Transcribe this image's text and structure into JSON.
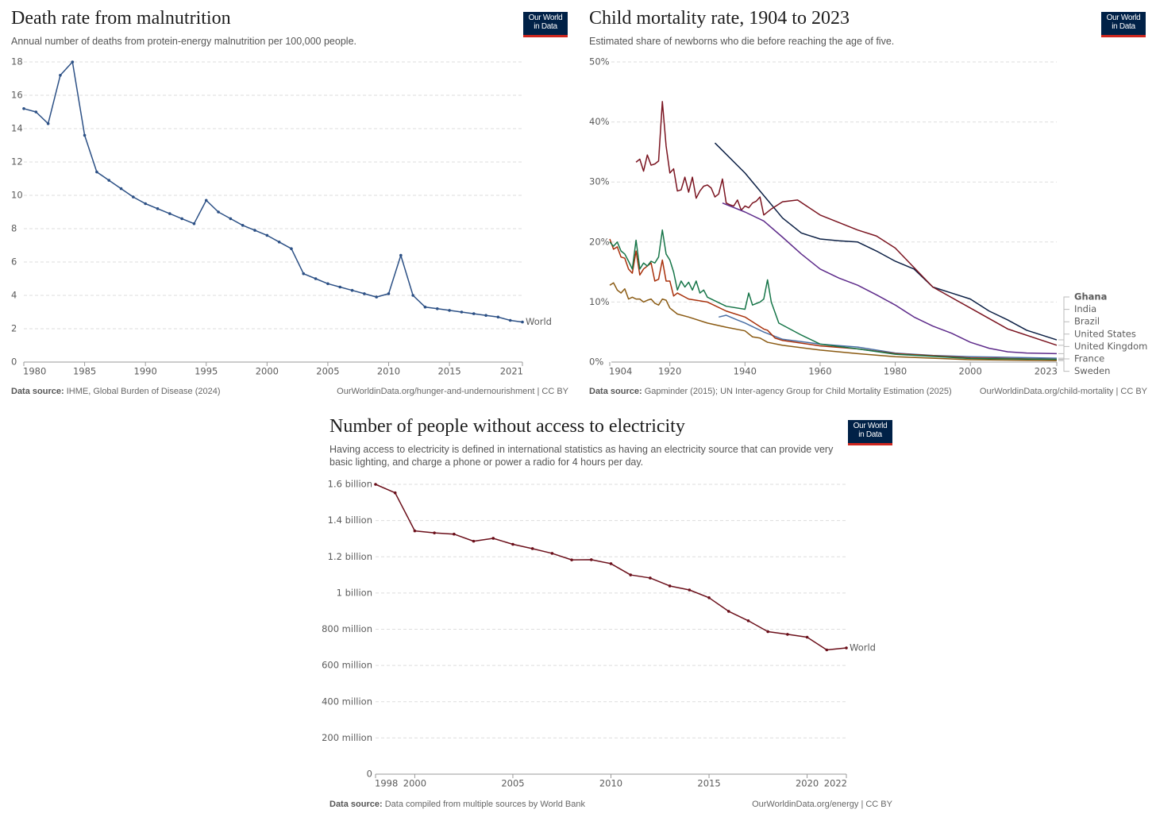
{
  "chart_data": [
    {
      "type": "line",
      "title": "Death rate from malnutrition",
      "subtitle": "Annual number of deaths from protein-energy malnutrition per 100,000 people.",
      "logo": [
        "Our World",
        "in Data"
      ],
      "source_label": "Data source:",
      "source": "IHME, Global Burden of Disease (2024)",
      "url": "OurWorldinData.org/hunger-and-undernourishment | CC BY",
      "x": [
        1980,
        1981,
        1982,
        1983,
        1984,
        1985,
        1986,
        1987,
        1988,
        1989,
        1990,
        1991,
        1992,
        1993,
        1994,
        1995,
        1996,
        1997,
        1998,
        1999,
        2000,
        2001,
        2002,
        2003,
        2004,
        2005,
        2006,
        2007,
        2008,
        2009,
        2010,
        2011,
        2012,
        2013,
        2014,
        2015,
        2016,
        2017,
        2018,
        2019,
        2020,
        2021
      ],
      "series": [
        {
          "name": "World",
          "color": "#2c5085",
          "values": [
            15.2,
            15.0,
            14.3,
            17.2,
            18.0,
            13.6,
            11.4,
            10.9,
            10.4,
            9.9,
            9.5,
            9.2,
            8.9,
            8.6,
            8.3,
            9.7,
            9.0,
            8.6,
            8.2,
            7.9,
            7.6,
            7.2,
            6.8,
            5.3,
            5.0,
            4.7,
            4.5,
            4.3,
            4.1,
            3.9,
            4.1,
            6.4,
            4.0,
            3.3,
            3.2,
            3.1,
            3.0,
            2.9,
            2.8,
            2.7,
            2.5,
            2.4
          ]
        }
      ],
      "xlim": [
        1980,
        2021
      ],
      "xticks": [
        1980,
        1985,
        1990,
        1995,
        2000,
        2005,
        2010,
        2015,
        2021
      ],
      "ylim": [
        0,
        18
      ],
      "yticks": [
        0,
        2,
        4,
        6,
        8,
        10,
        12,
        14,
        16,
        18
      ],
      "grid": true,
      "markers": true
    },
    {
      "type": "line",
      "title": "Child mortality rate, 1904 to 2023",
      "subtitle": "Estimated share of newborns who die before reaching the age of five.",
      "logo": [
        "Our World",
        "in Data"
      ],
      "source_label": "Data source:",
      "source": "Gapminder (2015); UN Inter-agency Group for Child Mortality Estimation (2025)",
      "url": "OurWorldinData.org/child-mortality | CC BY",
      "series": [
        {
          "name": "Ghana",
          "color": "#0b1f44",
          "x": [
            1932,
            1940,
            1950,
            1955,
            1960,
            1965,
            1970,
            1975,
            1980,
            1985,
            1990,
            1995,
            2000,
            2005,
            2010,
            2015,
            2023
          ],
          "values": [
            36.5,
            31.5,
            24,
            21.5,
            20.5,
            20.2,
            20,
            18.5,
            16.8,
            15.5,
            12.5,
            11.5,
            10.5,
            8.5,
            7,
            5.3,
            3.7
          ]
        },
        {
          "name": "India",
          "color": "#7a1420",
          "x": [
            1911,
            1912,
            1913,
            1914,
            1915,
            1916,
            1917,
            1918,
            1919,
            1920,
            1921,
            1922,
            1923,
            1924,
            1925,
            1926,
            1927,
            1928,
            1929,
            1930,
            1931,
            1932,
            1933,
            1934,
            1935,
            1936,
            1937,
            1938,
            1939,
            1940,
            1941,
            1942,
            1943,
            1944,
            1945,
            1947,
            1950,
            1954,
            1960,
            1970,
            1975,
            1980,
            1990,
            2000,
            2010,
            2023
          ],
          "values": [
            33.3,
            33.8,
            31.8,
            34.5,
            32.8,
            33.0,
            33.5,
            43.4,
            36,
            31.5,
            32.2,
            28.5,
            28.7,
            30.8,
            28.3,
            30.8,
            27.3,
            28.5,
            29.3,
            29.5,
            29.0,
            27.5,
            28.0,
            30.5,
            26.5,
            26.2,
            26.0,
            27.0,
            25.3,
            26.0,
            25.7,
            26.5,
            26.8,
            27.5,
            24.5,
            25.5,
            26.7,
            27.0,
            24.5,
            22,
            21,
            19,
            12.5,
            9,
            5.5,
            2.8
          ]
        },
        {
          "name": "Brazil",
          "color": "#5d2a8a",
          "x": [
            1934,
            1940,
            1945,
            1950,
            1955,
            1960,
            1965,
            1970,
            1975,
            1980,
            1985,
            1990,
            1995,
            2000,
            2005,
            2010,
            2015,
            2023
          ],
          "values": [
            26.5,
            25,
            23.5,
            20.8,
            18,
            15.5,
            14,
            12.8,
            11.2,
            9.5,
            7.5,
            6,
            4.8,
            3.3,
            2.3,
            1.7,
            1.5,
            1.4
          ]
        },
        {
          "name": "United States",
          "color": "#4a6fa5",
          "x": [
            1933,
            1935,
            1938,
            1940,
            1945,
            1950,
            1960,
            1970,
            1980,
            1990,
            2000,
            2023
          ],
          "values": [
            7.5,
            7.8,
            7,
            6.5,
            5,
            3.8,
            3,
            2.5,
            1.5,
            1.1,
            0.9,
            0.65
          ]
        },
        {
          "name": "United Kingdom",
          "color": "#a8300b",
          "x": [
            1904,
            1905,
            1906,
            1907,
            1908,
            1909,
            1910,
            1911,
            1912,
            1913,
            1914,
            1915,
            1916,
            1917,
            1918,
            1919,
            1920,
            1921,
            1922,
            1925,
            1930,
            1935,
            1940,
            1945,
            1946,
            1948,
            1950,
            1960,
            1970,
            1980,
            2000,
            2023
          ],
          "values": [
            20.5,
            18.8,
            19.2,
            17.5,
            17.3,
            15.5,
            14.8,
            18.5,
            14.5,
            15.5,
            16,
            16.5,
            13.5,
            13.8,
            17,
            13.5,
            13.5,
            11,
            11.5,
            10.5,
            10,
            8.5,
            7.5,
            5.5,
            5.3,
            4.0,
            3.6,
            2.7,
            2.2,
            1.4,
            0.7,
            0.45
          ]
        },
        {
          "name": "France",
          "color": "#167548",
          "x": [
            1904,
            1905,
            1906,
            1907,
            1908,
            1909,
            1910,
            1911,
            1912,
            1913,
            1914,
            1915,
            1916,
            1917,
            1918,
            1919,
            1920,
            1921,
            1922,
            1923,
            1924,
            1925,
            1926,
            1927,
            1928,
            1929,
            1930,
            1935,
            1940,
            1941,
            1942,
            1944,
            1945,
            1946,
            1947,
            1949,
            1955,
            1960,
            1970,
            1980,
            2000,
            2023
          ],
          "values": [
            20,
            19.3,
            20,
            18.5,
            18,
            16.8,
            15.5,
            20.3,
            15.5,
            16.5,
            16,
            16.8,
            16.5,
            17.5,
            22,
            18,
            17,
            15,
            12,
            13.5,
            12.5,
            13.3,
            12,
            13.5,
            11.5,
            12,
            10.8,
            9.3,
            8.8,
            11.5,
            9.5,
            10,
            10.5,
            13.7,
            10,
            6.5,
            4.5,
            3,
            2.2,
            1.3,
            0.6,
            0.45
          ]
        },
        {
          "name": "Sweden",
          "color": "#8a5a12",
          "x": [
            1904,
            1905,
            1906,
            1907,
            1908,
            1909,
            1910,
            1911,
            1912,
            1913,
            1914,
            1915,
            1916,
            1917,
            1918,
            1919,
            1920,
            1922,
            1925,
            1930,
            1935,
            1940,
            1942,
            1944,
            1946,
            1950,
            1960,
            1970,
            1980,
            2000,
            2023
          ],
          "values": [
            12.8,
            13.2,
            12,
            11.5,
            12.2,
            10.5,
            10.8,
            10.5,
            10.5,
            10,
            10.3,
            10.5,
            9.8,
            9.5,
            10.5,
            10.3,
            9,
            8,
            7.5,
            6.5,
            5.8,
            5.2,
            4.2,
            4,
            3.3,
            2.8,
            2,
            1.4,
            0.9,
            0.4,
            0.25
          ]
        }
      ],
      "xlim": [
        1904,
        2023
      ],
      "xticks": [
        1904,
        1920,
        1940,
        1960,
        1980,
        2000,
        2023
      ],
      "ylim": [
        0,
        50
      ],
      "yticks": [
        {
          "value": 0,
          "label": "0%"
        },
        {
          "value": 10,
          "label": "10%"
        },
        {
          "value": 20,
          "label": "20%"
        },
        {
          "value": 30,
          "label": "30%"
        },
        {
          "value": 40,
          "label": "40%"
        },
        {
          "value": 50,
          "label": "50%"
        }
      ],
      "grid": true,
      "markers": false,
      "legend": "right"
    },
    {
      "type": "line",
      "title": "Number of people without access to electricity",
      "subtitle": "Having access to electricity is defined in international statistics as having an electricity source that can provide very basic lighting, and charge a phone or power a radio for 4 hours per day.",
      "logo": [
        "Our World",
        "in Data"
      ],
      "source_label": "Data source:",
      "source": "Data compiled from multiple sources by World Bank",
      "url": "OurWorldinData.org/energy | CC BY",
      "x": [
        1998,
        1999,
        2000,
        2001,
        2002,
        2003,
        2004,
        2005,
        2006,
        2007,
        2008,
        2009,
        2010,
        2011,
        2012,
        2013,
        2014,
        2015,
        2016,
        2017,
        2018,
        2019,
        2020,
        2021,
        2022
      ],
      "series": [
        {
          "name": "World",
          "color": "#6b0f1a",
          "values": [
            1600000000,
            1553000000,
            1343000000,
            1332000000,
            1325000000,
            1286000000,
            1302000000,
            1269000000,
            1245000000,
            1219000000,
            1183000000,
            1184000000,
            1162000000,
            1100000000,
            1083000000,
            1039000000,
            1017000000,
            974000000,
            899000000,
            847000000,
            787000000,
            772000000,
            756000000,
            686000000,
            697000000
          ]
        }
      ],
      "xlim": [
        1998,
        2022
      ],
      "xticks": [
        1998,
        2000,
        2005,
        2010,
        2015,
        2020,
        2022
      ],
      "ylim": [
        0,
        1600000000
      ],
      "yticks": [
        0,
        {
          "value": 200000000,
          "label": "200 million"
        },
        {
          "value": 400000000,
          "label": "400 million"
        },
        {
          "value": 600000000,
          "label": "600 million"
        },
        {
          "value": 800000000,
          "label": "800 million"
        },
        {
          "value": 1000000000,
          "label": "1 billion"
        },
        {
          "value": 1200000000,
          "label": "1.2 billion"
        },
        {
          "value": 1400000000,
          "label": "1.4 billion"
        },
        {
          "value": 1600000000,
          "label": "1.6 billion"
        }
      ],
      "grid": true,
      "markers": true
    }
  ]
}
